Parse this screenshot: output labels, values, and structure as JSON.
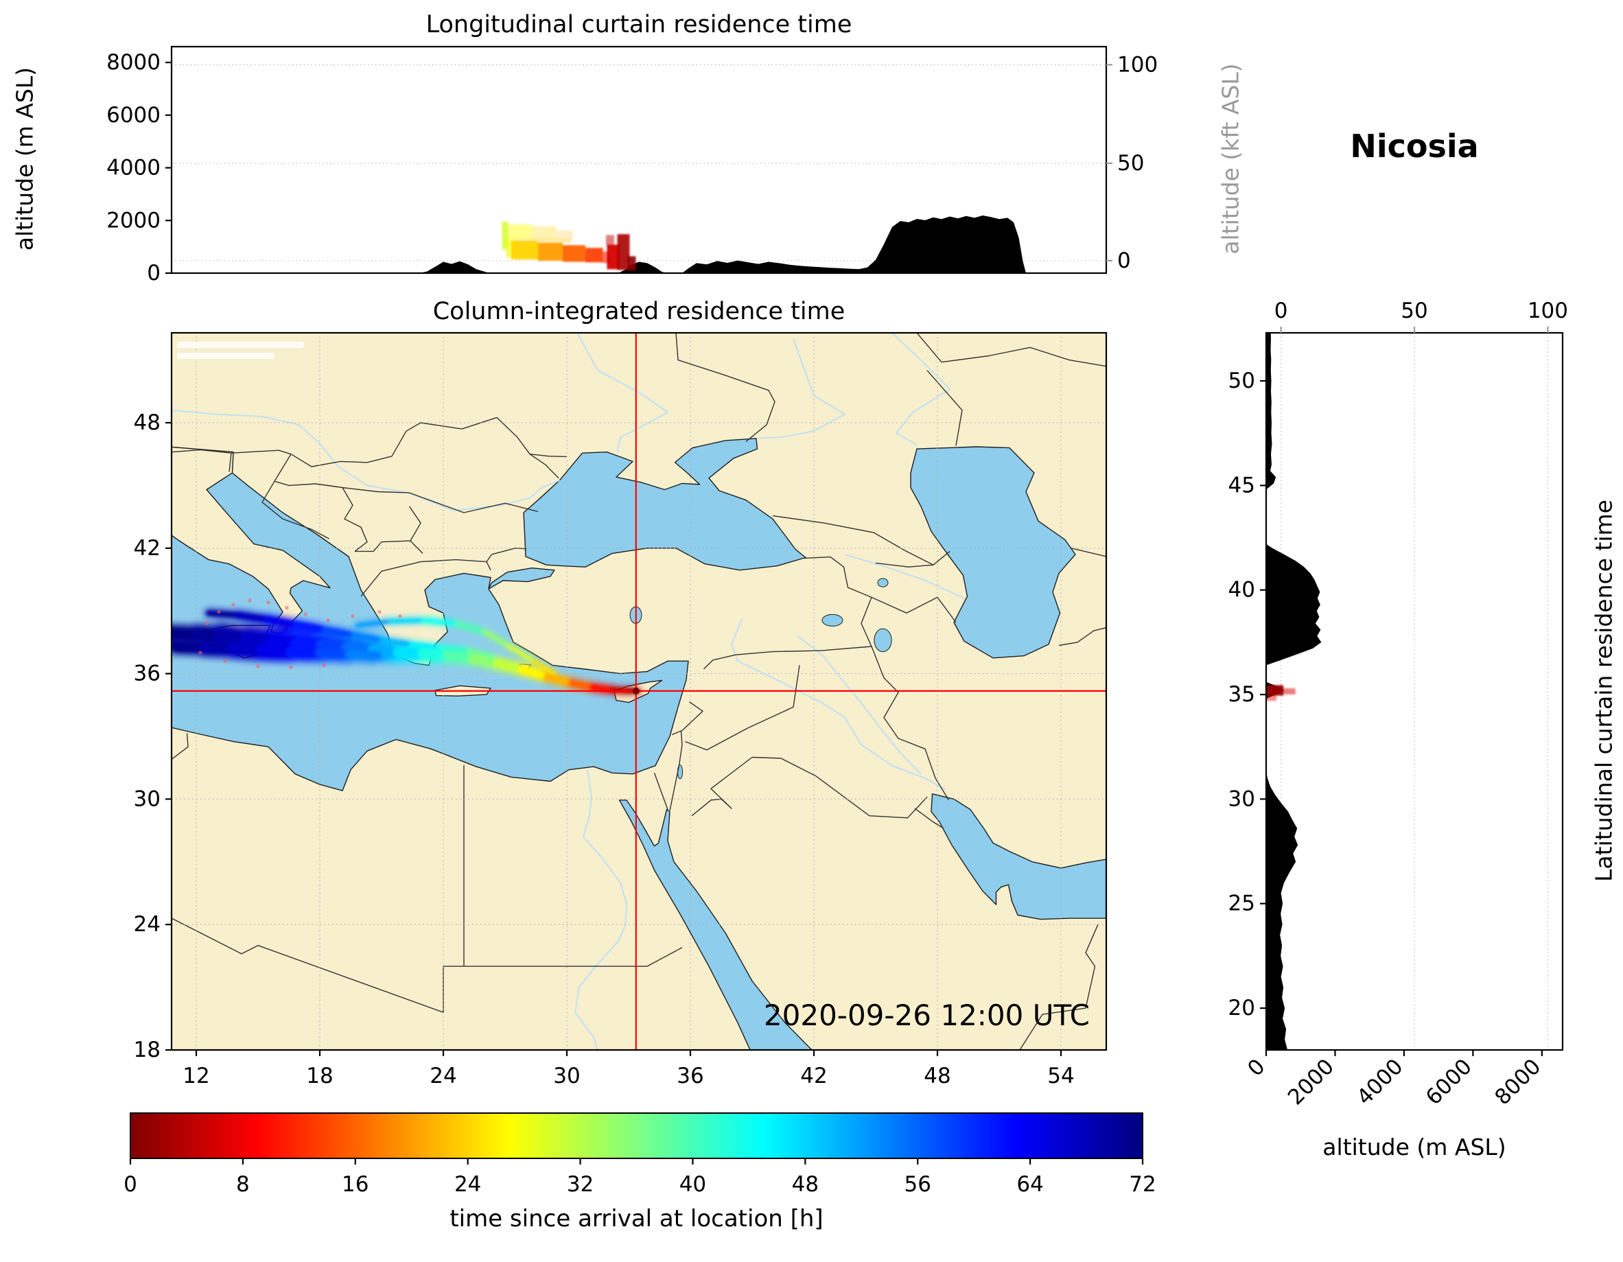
{
  "station": "Nicosia",
  "timestamp": "2020-09-26 12:00 UTC",
  "colors": {
    "land": "#f8efcd",
    "sea": "#8fcdec",
    "terrain": "#000000",
    "crosshair": "#ff0000",
    "grid": "#aaaaaa",
    "secondary_axis": "#999999",
    "border": "#333333",
    "coast": "#1f1f1f"
  },
  "chart_data": [
    {
      "id": "longitudinal-curtain",
      "type": "heatmap",
      "title": "Longitudinal curtain residence time",
      "ylabel": "altitude (m ASL)",
      "ylabel_right": "altitude (kft ASL)",
      "xlim_lon": [
        10.8,
        56.2
      ],
      "ylim_m": [
        0,
        8600
      ],
      "yticks_m": [
        0,
        2000,
        4000,
        6000,
        8000
      ],
      "yticks_right_kft": {
        "labels": [
          "100",
          "50",
          "0"
        ],
        "fracs": [
          0.08,
          0.515,
          0.945
        ]
      },
      "terrain_profile_lon_m": [
        [
          10.8,
          0
        ],
        [
          22.8,
          0
        ],
        [
          23.2,
          60
        ],
        [
          23.6,
          240
        ],
        [
          24.0,
          430
        ],
        [
          24.4,
          350
        ],
        [
          24.8,
          450
        ],
        [
          25.2,
          330
        ],
        [
          25.6,
          150
        ],
        [
          26.1,
          30
        ],
        [
          26.4,
          0
        ],
        [
          32.5,
          0
        ],
        [
          32.8,
          120
        ],
        [
          33.1,
          300
        ],
        [
          33.5,
          430
        ],
        [
          33.9,
          380
        ],
        [
          34.3,
          220
        ],
        [
          34.6,
          60
        ],
        [
          34.8,
          0
        ],
        [
          35.6,
          0
        ],
        [
          35.9,
          180
        ],
        [
          36.3,
          380
        ],
        [
          36.8,
          330
        ],
        [
          37.3,
          460
        ],
        [
          37.8,
          390
        ],
        [
          38.3,
          480
        ],
        [
          38.8,
          410
        ],
        [
          39.3,
          350
        ],
        [
          39.8,
          430
        ],
        [
          40.3,
          380
        ],
        [
          40.8,
          320
        ],
        [
          41.3,
          280
        ],
        [
          41.8,
          250
        ],
        [
          42.3,
          230
        ],
        [
          42.8,
          200
        ],
        [
          43.3,
          185
        ],
        [
          43.8,
          165
        ],
        [
          44.2,
          155
        ],
        [
          44.6,
          220
        ],
        [
          45.0,
          500
        ],
        [
          45.4,
          1100
        ],
        [
          45.8,
          1750
        ],
        [
          46.2,
          1980
        ],
        [
          46.6,
          1930
        ],
        [
          47.0,
          2060
        ],
        [
          47.4,
          2010
        ],
        [
          47.8,
          2120
        ],
        [
          48.2,
          2050
        ],
        [
          48.6,
          2150
        ],
        [
          49.0,
          2080
        ],
        [
          49.4,
          2170
        ],
        [
          49.8,
          2100
        ],
        [
          50.2,
          2190
        ],
        [
          50.6,
          2130
        ],
        [
          51.0,
          2050
        ],
        [
          51.4,
          2100
        ],
        [
          51.7,
          1930
        ],
        [
          51.95,
          1350
        ],
        [
          52.15,
          450
        ],
        [
          52.3,
          0
        ],
        [
          56.2,
          0
        ]
      ],
      "plume_cells_lon_alt": [
        [
          26.85,
          27.15,
          900,
          1950,
          30,
          0.85
        ],
        [
          27.15,
          28.3,
          1300,
          1850,
          27,
          0.45
        ],
        [
          28.3,
          29.5,
          1300,
          1780,
          24,
          0.3
        ],
        [
          29.5,
          30.3,
          1300,
          1620,
          22,
          0.22
        ],
        [
          27.05,
          27.5,
          600,
          1300,
          28,
          0.7
        ],
        [
          27.3,
          28.6,
          520,
          1220,
          24,
          0.95
        ],
        [
          28.6,
          29.8,
          470,
          1150,
          20,
          0.95
        ],
        [
          29.8,
          30.9,
          430,
          1060,
          16,
          0.95
        ],
        [
          30.9,
          31.75,
          410,
          960,
          13,
          0.92
        ],
        [
          31.75,
          32.1,
          380,
          820,
          10,
          0.6
        ],
        [
          31.95,
          32.55,
          150,
          1080,
          6,
          0.95
        ],
        [
          32.45,
          33.05,
          120,
          1480,
          3,
          0.9
        ],
        [
          32.95,
          33.35,
          100,
          640,
          1,
          0.9
        ],
        [
          31.9,
          32.3,
          1050,
          1450,
          5,
          0.5
        ],
        [
          27.5,
          30.2,
          1150,
          1320,
          23,
          0.35
        ]
      ]
    },
    {
      "id": "map",
      "type": "heatmap",
      "title": "Column-integrated residence time",
      "xlim_lon": [
        10.8,
        56.2
      ],
      "ylim_lat": [
        18,
        52.3
      ],
      "xticks_lon": [
        12,
        18,
        24,
        30,
        36,
        42,
        48,
        54
      ],
      "yticks_lat": [
        18,
        24,
        30,
        36,
        42,
        48
      ],
      "timestamp": "2020-09-26 12:00 UTC",
      "receptor": {
        "name": "Nicosia",
        "lon": 33.36,
        "lat": 35.17
      },
      "plume_strands_lon_lat_h_w": [
        [
          [
            10.8,
            37.9,
            72,
            26
          ],
          [
            12.0,
            37.85,
            71,
            30
          ],
          [
            13.2,
            37.8,
            70,
            34
          ],
          [
            14.5,
            37.6,
            68,
            42
          ],
          [
            15.8,
            37.45,
            66,
            46
          ],
          [
            17.0,
            37.35,
            63,
            48
          ],
          [
            18.2,
            37.3,
            60,
            46
          ],
          [
            19.4,
            37.2,
            57,
            40
          ],
          [
            20.6,
            37.1,
            53,
            34
          ],
          [
            21.8,
            37.0,
            49,
            30
          ],
          [
            23.0,
            36.95,
            45,
            27
          ],
          [
            24.2,
            36.9,
            41,
            24
          ],
          [
            25.4,
            36.75,
            37,
            22
          ],
          [
            26.6,
            36.5,
            33,
            20
          ],
          [
            27.8,
            36.2,
            29,
            18
          ],
          [
            29.0,
            35.85,
            24,
            16
          ],
          [
            30.2,
            35.55,
            19,
            15
          ],
          [
            31.2,
            35.35,
            13,
            14
          ],
          [
            32.2,
            35.22,
            7,
            12
          ],
          [
            33.0,
            35.18,
            3,
            10
          ],
          [
            33.45,
            35.17,
            0,
            9
          ]
        ],
        [
          [
            12.6,
            38.9,
            71,
            10
          ],
          [
            14.0,
            38.8,
            69,
            13
          ],
          [
            15.4,
            38.6,
            66,
            15
          ],
          [
            16.8,
            38.35,
            63,
            15
          ],
          [
            18.2,
            38.1,
            60,
            14
          ],
          [
            19.6,
            37.85,
            56,
            12
          ],
          [
            21.0,
            37.6,
            52,
            11
          ],
          [
            22.4,
            37.4,
            48,
            10
          ],
          [
            23.8,
            37.25,
            44,
            9
          ],
          [
            25.2,
            37.1,
            40,
            8
          ],
          [
            26.4,
            36.8,
            35,
            8
          ]
        ],
        [
          [
            19.8,
            38.3,
            54,
            7
          ],
          [
            21.4,
            38.5,
            50,
            8
          ],
          [
            23.0,
            38.55,
            46,
            9
          ],
          [
            24.6,
            38.4,
            42,
            9
          ],
          [
            26.0,
            38.0,
            37,
            8
          ],
          [
            27.2,
            37.3,
            32,
            7
          ],
          [
            28.4,
            36.6,
            27,
            7
          ],
          [
            29.4,
            36.0,
            23,
            6
          ]
        ],
        [
          [
            11.0,
            37.3,
            72,
            22
          ],
          [
            12.4,
            37.25,
            70,
            26
          ],
          [
            13.8,
            37.2,
            68,
            30
          ],
          [
            15.2,
            37.1,
            66,
            32
          ],
          [
            16.6,
            37.05,
            63,
            30
          ],
          [
            18.0,
            37.0,
            60,
            26
          ],
          [
            19.4,
            36.95,
            56,
            22
          ],
          [
            20.8,
            36.9,
            52,
            18
          ]
        ]
      ],
      "plume_specks_lon_lat": [
        [
          12.5,
          38.4
        ],
        [
          13.1,
          38.95
        ],
        [
          13.8,
          39.3
        ],
        [
          14.6,
          39.5
        ],
        [
          15.5,
          39.4
        ],
        [
          16.4,
          39.15
        ],
        [
          17.3,
          38.85
        ],
        [
          18.4,
          38.55
        ],
        [
          19.6,
          38.75
        ],
        [
          20.9,
          38.95
        ],
        [
          21.9,
          38.75
        ],
        [
          12.2,
          37.0
        ],
        [
          13.4,
          36.6
        ],
        [
          15.0,
          36.35
        ],
        [
          16.6,
          36.3
        ],
        [
          18.2,
          36.4
        ]
      ]
    },
    {
      "id": "latitudinal-curtain",
      "type": "heatmap",
      "title": "Latitudinal curtain residence time",
      "xlabel": "altitude (m ASL)",
      "xlim_m": [
        0,
        8600
      ],
      "xticks_m": [
        0,
        2000,
        4000,
        6000,
        8000
      ],
      "xticks_top_kft": {
        "labels": [
          "0",
          "50",
          "100"
        ],
        "fracs": [
          0.05,
          0.5,
          0.95
        ]
      },
      "yticks_lat": [
        20,
        25,
        30,
        35,
        40,
        45,
        50
      ],
      "terrain_profile_lat_m": [
        [
          18,
          620
        ],
        [
          18.5,
          540
        ],
        [
          19,
          580
        ],
        [
          19.5,
          480
        ],
        [
          20,
          540
        ],
        [
          20.5,
          460
        ],
        [
          21,
          500
        ],
        [
          21.5,
          430
        ],
        [
          22,
          490
        ],
        [
          22.5,
          420
        ],
        [
          23,
          460
        ],
        [
          23.5,
          400
        ],
        [
          24,
          470
        ],
        [
          24.5,
          420
        ],
        [
          25,
          480
        ],
        [
          25.5,
          430
        ],
        [
          26,
          520
        ],
        [
          26.5,
          680
        ],
        [
          27,
          860
        ],
        [
          27.4,
          780
        ],
        [
          27.8,
          920
        ],
        [
          28.2,
          820
        ],
        [
          28.6,
          900
        ],
        [
          29,
          760
        ],
        [
          29.4,
          640
        ],
        [
          29.8,
          440
        ],
        [
          30.2,
          260
        ],
        [
          30.6,
          120
        ],
        [
          31,
          40
        ],
        [
          31.3,
          0
        ],
        [
          34.8,
          0
        ],
        [
          35.0,
          280
        ],
        [
          35.2,
          520
        ],
        [
          35.4,
          300
        ],
        [
          35.6,
          0
        ],
        [
          36.4,
          0
        ],
        [
          36.6,
          350
        ],
        [
          36.9,
          850
        ],
        [
          37.2,
          1350
        ],
        [
          37.5,
          1600
        ],
        [
          37.8,
          1480
        ],
        [
          38.1,
          1580
        ],
        [
          38.4,
          1430
        ],
        [
          38.7,
          1540
        ],
        [
          39,
          1470
        ],
        [
          39.3,
          1570
        ],
        [
          39.6,
          1490
        ],
        [
          39.9,
          1560
        ],
        [
          40.2,
          1480
        ],
        [
          40.5,
          1400
        ],
        [
          40.8,
          1280
        ],
        [
          41.1,
          1100
        ],
        [
          41.4,
          850
        ],
        [
          41.7,
          520
        ],
        [
          42,
          180
        ],
        [
          42.2,
          0
        ],
        [
          44.8,
          0
        ],
        [
          45.1,
          220
        ],
        [
          45.4,
          280
        ],
        [
          45.7,
          120
        ],
        [
          46,
          160
        ],
        [
          46.5,
          140
        ],
        [
          47,
          170
        ],
        [
          47.5,
          150
        ],
        [
          48,
          160
        ],
        [
          48.5,
          145
        ],
        [
          49,
          155
        ],
        [
          49.5,
          140
        ],
        [
          50,
          150
        ],
        [
          50.5,
          135
        ],
        [
          51,
          145
        ],
        [
          51.5,
          130
        ],
        [
          52,
          140
        ],
        [
          52.3,
          135
        ]
      ],
      "plume_cells_lat_alt": [
        [
          34.95,
          35.45,
          0,
          500,
          2,
          0.95
        ],
        [
          35.0,
          35.3,
          500,
          850,
          6,
          0.5
        ],
        [
          34.7,
          34.95,
          0,
          300,
          8,
          0.45
        ]
      ]
    },
    {
      "id": "colorbar",
      "type": "colorbar",
      "label": "time since arrival at location [h]",
      "range_h": [
        0,
        72
      ],
      "ticks_h": [
        0,
        8,
        16,
        24,
        32,
        40,
        48,
        56,
        64,
        72
      ],
      "colormap": "jet_r"
    }
  ]
}
